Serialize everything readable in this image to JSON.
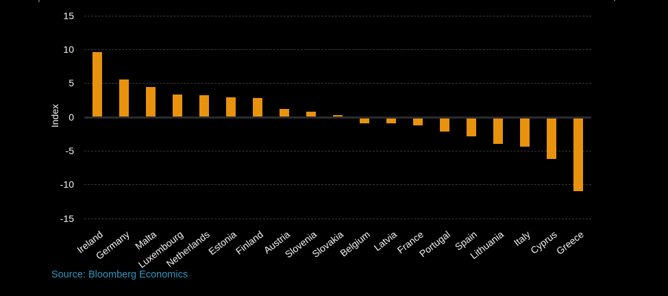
{
  "chart_data": {
    "type": "bar",
    "title": "",
    "xlabel": "",
    "ylabel": "Index",
    "categories": [
      "Ireland",
      "Germany",
      "Malta",
      "Luxembourg",
      "Netherlands",
      "Estonia",
      "Finland",
      "Austria",
      "Slovenia",
      "Slovakia",
      "Belgium",
      "Latvia",
      "France",
      "Portugal",
      "Spain",
      "Lithuania",
      "Italy",
      "Cyprus",
      "Greece"
    ],
    "values": [
      9.6,
      5.5,
      4.4,
      3.3,
      3.2,
      2.9,
      2.8,
      1.2,
      0.8,
      0.3,
      -0.9,
      -0.9,
      -1.2,
      -2.2,
      -2.9,
      -4.0,
      -4.4,
      -6.2,
      -11.0
    ],
    "ylim": [
      -15,
      15
    ],
    "yticks": [
      15,
      10,
      5,
      0,
      -5,
      -10,
      -15
    ],
    "grid": "horizontal-dashed",
    "legend": "none",
    "colors": {
      "bar": "#E9920E",
      "background": "#000000",
      "text": "#F2F2F2",
      "axis_line": "#2B2D31",
      "gridline": "#3B3B3B"
    }
  },
  "source": {
    "label": "Source: Bloomberg Economics",
    "color": "#2E96BE"
  }
}
